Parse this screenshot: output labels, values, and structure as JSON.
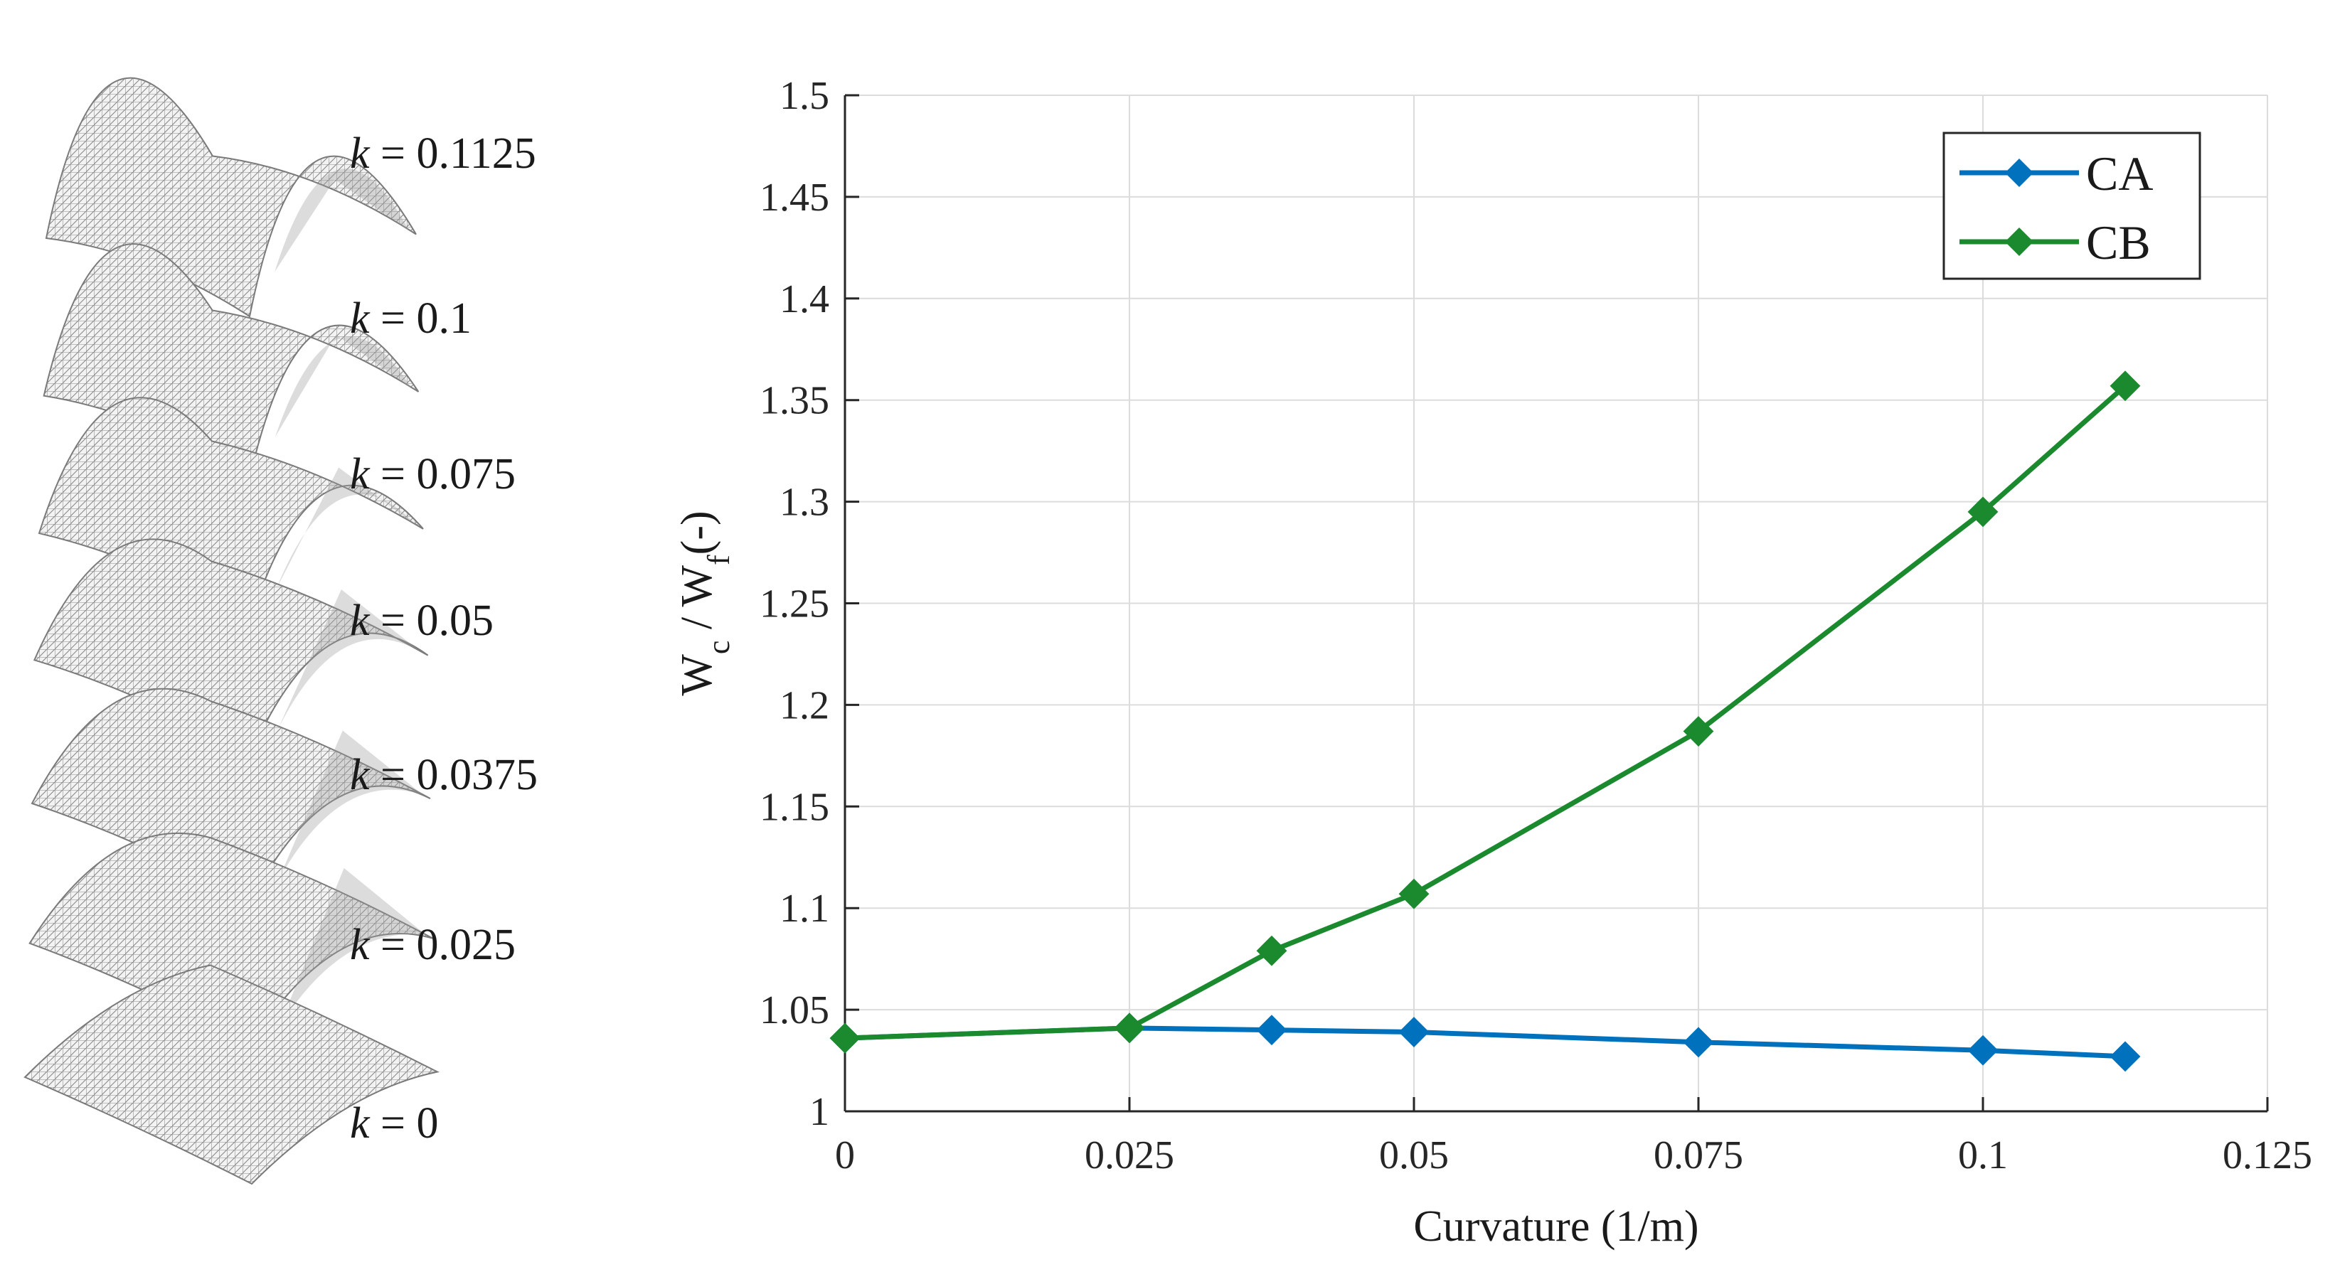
{
  "shells": [
    {
      "k": 0.1125,
      "label_var": "k",
      "label_eq": " = 0.1125"
    },
    {
      "k": 0.1,
      "label_var": "k",
      "label_eq": " = 0.1"
    },
    {
      "k": 0.075,
      "label_var": "k",
      "label_eq": " = 0.075"
    },
    {
      "k": 0.05,
      "label_var": "k",
      "label_eq": " = 0.05"
    },
    {
      "k": 0.0375,
      "label_var": "k",
      "label_eq": " = 0.0375"
    },
    {
      "k": 0.025,
      "label_var": "k",
      "label_eq": " = 0.025"
    },
    {
      "k": 0,
      "label_var": "k",
      "label_eq": " = 0"
    }
  ],
  "chart_data": {
    "type": "line",
    "title": "",
    "xlabel": "Curvature (1/m)",
    "ylabel": "W_c / W_f(-)",
    "xlim": [
      0,
      0.125
    ],
    "ylim": [
      1,
      1.5
    ],
    "xticks": [
      0,
      0.025,
      0.05,
      0.075,
      0.1,
      0.125
    ],
    "xtick_labels": [
      "0",
      "0.025",
      "0.05",
      "0.075",
      "0.1",
      "0.125"
    ],
    "yticks": [
      1,
      1.05,
      1.1,
      1.15,
      1.2,
      1.25,
      1.3,
      1.35,
      1.4,
      1.45,
      1.5
    ],
    "ytick_labels": [
      "1",
      "1.05",
      "1.1",
      "1.15",
      "1.2",
      "1.25",
      "1.3",
      "1.35",
      "1.4",
      "1.45",
      "1.5"
    ],
    "grid": true,
    "legend_position": "top-right",
    "series": [
      {
        "name": "CA",
        "color": "#0072BD",
        "marker": "diamond",
        "x": [
          0,
          0.025,
          0.0375,
          0.05,
          0.075,
          0.1,
          0.1125
        ],
        "y": [
          1.036,
          1.041,
          1.04,
          1.039,
          1.034,
          1.03,
          1.027
        ]
      },
      {
        "name": "CB",
        "color": "#1B8A2E",
        "marker": "diamond",
        "x": [
          0,
          0.025,
          0.0375,
          0.05,
          0.075,
          0.1,
          0.1125
        ],
        "y": [
          1.036,
          1.041,
          1.079,
          1.107,
          1.187,
          1.295,
          1.357
        ]
      }
    ]
  }
}
